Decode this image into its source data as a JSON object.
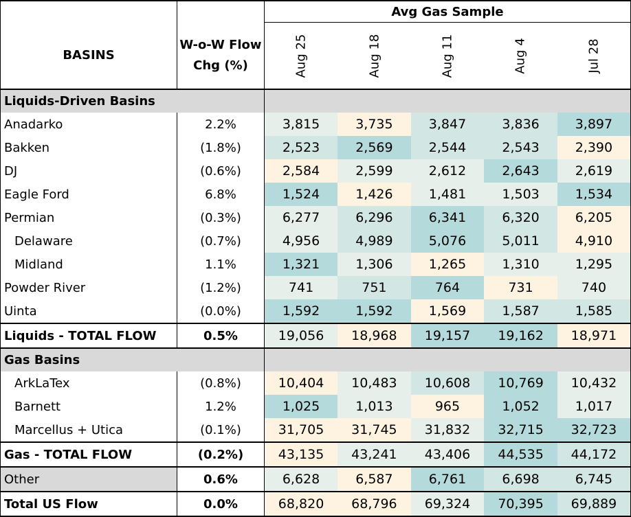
{
  "header": {
    "top_label": "Avg Gas Sample",
    "basins_label": "BASINS",
    "chg_label_line1": "W-o-W Flow",
    "chg_label_line2": "Chg (%)",
    "dates": [
      "Aug 25",
      "Aug 18",
      "Aug 11",
      "Aug 4",
      "Jul 28"
    ]
  },
  "sections": {
    "liquids": "Liquids-Driven Basins",
    "gas": "Gas Basins"
  },
  "rows": {
    "anadarko": {
      "label": "Anadarko",
      "chg": "2.2%",
      "values": [
        "3,815",
        "3,735",
        "3,847",
        "3,836",
        "3,897"
      ]
    },
    "bakken": {
      "label": "Bakken",
      "chg": "(1.8%)",
      "values": [
        "2,523",
        "2,569",
        "2,544",
        "2,543",
        "2,390"
      ]
    },
    "dj": {
      "label": "DJ",
      "chg": "(0.6%)",
      "values": [
        "2,584",
        "2,599",
        "2,612",
        "2,643",
        "2,619"
      ]
    },
    "eagleford": {
      "label": "Eagle Ford",
      "chg": "6.8%",
      "values": [
        "1,524",
        "1,426",
        "1,481",
        "1,503",
        "1,534"
      ]
    },
    "permian": {
      "label": "Permian",
      "chg": "(0.3%)",
      "values": [
        "6,277",
        "6,296",
        "6,341",
        "6,320",
        "6,205"
      ]
    },
    "delaware": {
      "label": "Delaware",
      "chg": "(0.7%)",
      "values": [
        "4,956",
        "4,989",
        "5,076",
        "5,011",
        "4,910"
      ]
    },
    "midland": {
      "label": "Midland",
      "chg": "1.1%",
      "values": [
        "1,321",
        "1,306",
        "1,265",
        "1,310",
        "1,295"
      ]
    },
    "powder": {
      "label": "Powder River",
      "chg": "(1.2%)",
      "values": [
        "741",
        "751",
        "764",
        "731",
        "740"
      ]
    },
    "uinta": {
      "label": "Uinta",
      "chg": "(0.0%)",
      "values": [
        "1,592",
        "1,592",
        "1,569",
        "1,587",
        "1,585"
      ]
    },
    "liquids_total": {
      "label": "Liquids - TOTAL FLOW",
      "chg": "0.5%",
      "values": [
        "19,056",
        "18,968",
        "19,157",
        "19,162",
        "18,971"
      ]
    },
    "arklatex": {
      "label": "ArkLaTex",
      "chg": "(0.8%)",
      "values": [
        "10,404",
        "10,483",
        "10,608",
        "10,769",
        "10,432"
      ]
    },
    "barnett": {
      "label": "Barnett",
      "chg": "1.2%",
      "values": [
        "1,025",
        "1,013",
        "965",
        "1,052",
        "1,017"
      ]
    },
    "marcellus": {
      "label": "Marcellus + Utica",
      "chg": "(0.1%)",
      "values": [
        "31,705",
        "31,745",
        "31,832",
        "32,715",
        "32,723"
      ]
    },
    "gas_total": {
      "label": "Gas - TOTAL FLOW",
      "chg": "(0.2%)",
      "values": [
        "43,135",
        "43,241",
        "43,406",
        "44,535",
        "44,172"
      ]
    },
    "other": {
      "label": "Other",
      "chg": "0.6%",
      "values": [
        "6,628",
        "6,587",
        "6,761",
        "6,698",
        "6,745"
      ]
    },
    "total_us": {
      "label": "Total US Flow",
      "chg": "0.0%",
      "values": [
        "68,820",
        "68,796",
        "69,324",
        "70,395",
        "69,889"
      ]
    }
  },
  "colors": {
    "cream": "#fdf3e0",
    "light": "#e6efe9",
    "mid": "#d2e6e3",
    "teal": "#b5dadb",
    "grey": "#d9d9d9"
  },
  "cell_colors": {
    "anadarko": [
      "light",
      "cream",
      "mid",
      "mid",
      "teal"
    ],
    "bakken": [
      "mid",
      "teal",
      "mid",
      "mid",
      "cream"
    ],
    "dj": [
      "cream",
      "light",
      "light",
      "teal",
      "light"
    ],
    "eagleford": [
      "teal",
      "cream",
      "light",
      "light",
      "teal"
    ],
    "permian": [
      "light",
      "mid",
      "teal",
      "mid",
      "cream"
    ],
    "delaware": [
      "light",
      "mid",
      "teal",
      "mid",
      "cream"
    ],
    "midland": [
      "teal",
      "light",
      "cream",
      "light",
      "light"
    ],
    "powder": [
      "light",
      "mid",
      "teal",
      "cream",
      "light"
    ],
    "uinta": [
      "teal",
      "teal",
      "cream",
      "mid",
      "mid"
    ],
    "liquids_total": [
      "light",
      "cream",
      "teal",
      "teal",
      "cream"
    ],
    "arklatex": [
      "cream",
      "light",
      "mid",
      "teal",
      "light"
    ],
    "barnett": [
      "teal",
      "light",
      "cream",
      "teal",
      "light"
    ],
    "marcellus": [
      "cream",
      "cream",
      "light",
      "teal",
      "teal"
    ],
    "gas_total": [
      "cream",
      "light",
      "light",
      "teal",
      "mid"
    ],
    "other": [
      "light",
      "cream",
      "teal",
      "mid",
      "mid"
    ],
    "total_us": [
      "cream",
      "cream",
      "light",
      "teal",
      "mid"
    ]
  }
}
